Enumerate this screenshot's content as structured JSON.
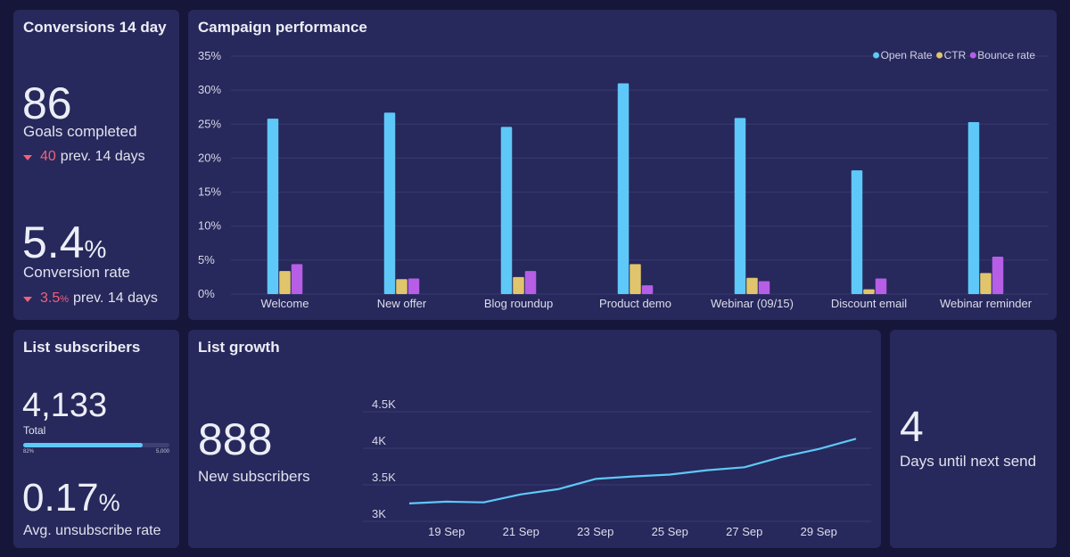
{
  "colors": {
    "background": "#16163a",
    "card": "#27285b",
    "open_rate": "#5ec8f8",
    "ctr": "#e1c56c",
    "bounce_rate": "#b65ee6",
    "line": "#5ec8f8",
    "negative": "#f0627a"
  },
  "conversions": {
    "title": "Conversions 14 day",
    "goals_value": "86",
    "goals_label": "Goals completed",
    "goals_prev_value": "40",
    "goals_prev_label": "prev. 14 days",
    "rate_value": "5.4",
    "rate_unit": "%",
    "rate_label": "Conversion rate",
    "rate_prev_value": "3.5",
    "rate_prev_unit": "%",
    "rate_prev_label": "prev. 14 days",
    "trend_icon": "triangle-down-icon"
  },
  "campaign": {
    "title": "Campaign performance",
    "legend": [
      "Open Rate",
      "CTR",
      "Bounce rate"
    ]
  },
  "list_subscribers": {
    "title": "List subscribers",
    "total_value": "4,133",
    "total_label": "Total",
    "progress_left": "82%",
    "progress_right": "5,000",
    "progress_fraction": 0.82,
    "unsub_value": "0.17",
    "unsub_unit": "%",
    "unsub_label": "Avg. unsubscribe rate"
  },
  "list_growth": {
    "title": "List growth",
    "new_value": "888",
    "new_label": "New subscribers"
  },
  "next_send": {
    "value": "4",
    "label": "Days until next send"
  },
  "chart_data": [
    {
      "type": "bar",
      "title": "Campaign performance",
      "categories": [
        "Welcome",
        "New offer",
        "Blog roundup",
        "Product demo",
        "Webinar (09/15)",
        "Discount email",
        "Webinar reminder"
      ],
      "series": [
        {
          "name": "Open Rate",
          "values": [
            25.8,
            26.7,
            24.6,
            31.0,
            25.9,
            18.2,
            25.3
          ]
        },
        {
          "name": "CTR",
          "values": [
            3.4,
            2.2,
            2.5,
            4.4,
            2.4,
            0.7,
            3.1
          ]
        },
        {
          "name": "Bounce rate",
          "values": [
            4.4,
            2.3,
            3.4,
            1.3,
            1.9,
            2.3,
            5.5
          ]
        }
      ],
      "yticks": [
        "0%",
        "5%",
        "10%",
        "15%",
        "20%",
        "25%",
        "30%",
        "35%"
      ],
      "ylim": [
        0,
        35
      ],
      "legend_position": "top-right",
      "grid": true
    },
    {
      "type": "line",
      "title": "List growth",
      "x": [
        "18 Sep",
        "19 Sep",
        "20 Sep",
        "21 Sep",
        "22 Sep",
        "23 Sep",
        "24 Sep",
        "25 Sep",
        "26 Sep",
        "27 Sep",
        "28 Sep",
        "29 Sep",
        "30 Sep"
      ],
      "xticks": [
        "19 Sep",
        "21 Sep",
        "23 Sep",
        "25 Sep",
        "27 Sep",
        "29 Sep"
      ],
      "series": [
        {
          "values": [
            3245,
            3270,
            3260,
            3370,
            3440,
            3580,
            3615,
            3640,
            3700,
            3740,
            3880,
            3990,
            4130
          ]
        }
      ],
      "yticks": [
        "3K",
        "3.5K",
        "4K",
        "4.5K"
      ],
      "ylim": [
        3000,
        4500
      ],
      "grid": true
    }
  ]
}
